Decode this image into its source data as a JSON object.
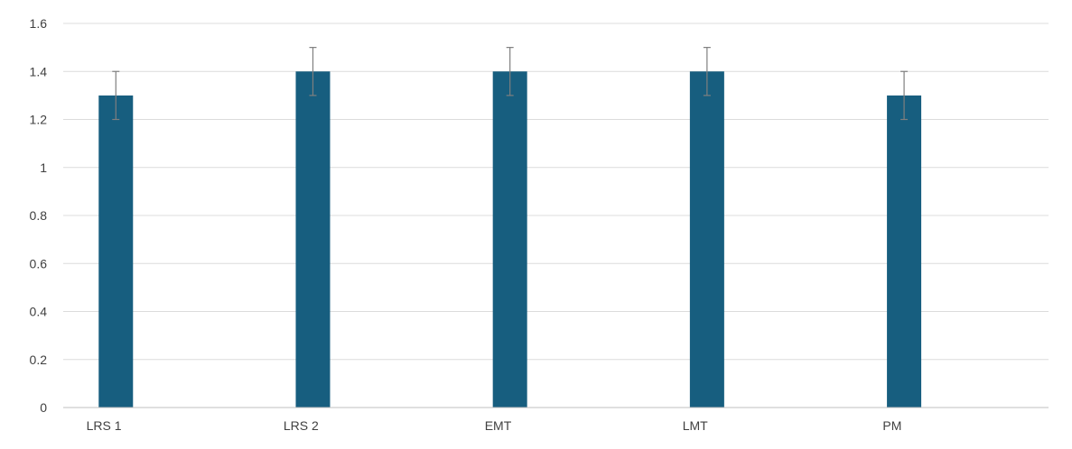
{
  "chart_data": {
    "type": "bar",
    "title": "",
    "xlabel": "",
    "ylabel": "",
    "categories": [
      "LRS 1",
      "LRS 2",
      "EMT",
      "LMT",
      "PM"
    ],
    "values": [
      1.3,
      1.4,
      1.4,
      1.4,
      1.3
    ],
    "error": [
      0.1,
      0.1,
      0.1,
      0.1,
      0.1
    ],
    "ylim": [
      0,
      1.6
    ],
    "yticks": [
      0,
      0.2,
      0.4,
      0.6,
      0.8,
      1,
      1.2,
      1.4,
      1.6
    ],
    "ytick_labels": [
      "0",
      "0.2",
      "0.4",
      "0.6",
      "0.8",
      "1",
      "1.2",
      "1.4",
      "1.6"
    ],
    "grid": true,
    "legend": "none",
    "bar_color": "#175e7f",
    "error_bar_color": "#7f7f7f",
    "grid_color": "#dcdcdc"
  }
}
